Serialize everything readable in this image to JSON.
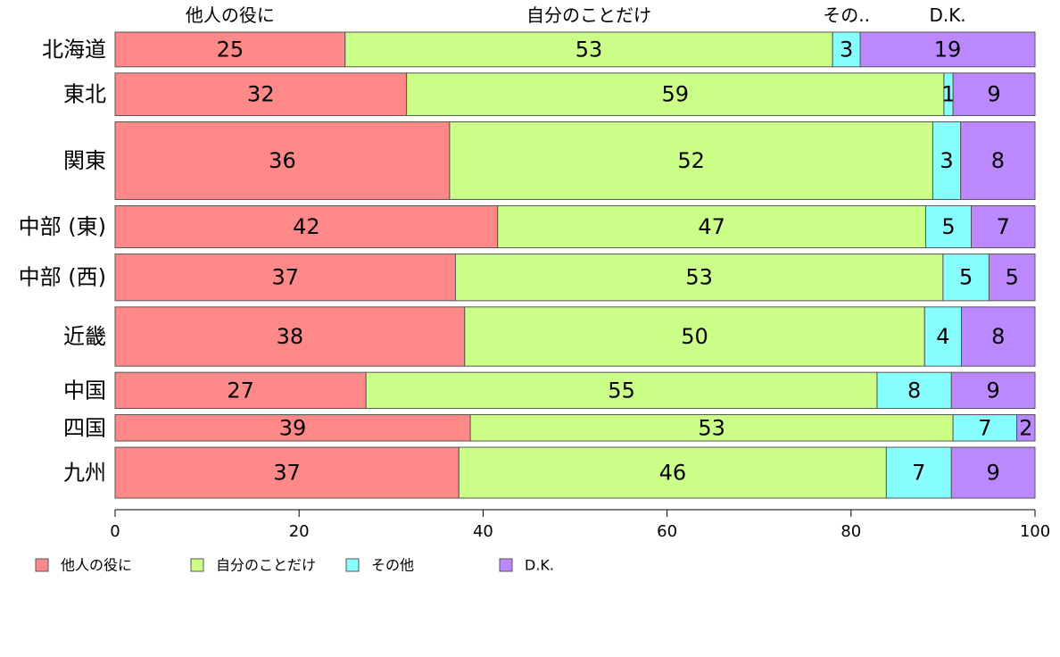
{
  "chart_data": {
    "type": "bar",
    "orientation": "horizontal",
    "stacked": true,
    "categories": [
      "北海道",
      "東北",
      "関東",
      "中部 (東)",
      "中部 (西)",
      "近畿",
      "中国",
      "四国",
      "九州"
    ],
    "series": [
      {
        "name": "他人の役に",
        "color": "#FF8888",
        "values": [
          25,
          32,
          36,
          42,
          37,
          38,
          27,
          39,
          37
        ]
      },
      {
        "name": "自分のことだけ",
        "color": "#CCFF88",
        "values": [
          53,
          59,
          52,
          47,
          53,
          50,
          55,
          53,
          46
        ]
      },
      {
        "name": "その他",
        "color": "#88FFFF",
        "values": [
          3,
          1,
          3,
          5,
          5,
          4,
          8,
          7,
          7
        ]
      },
      {
        "name": "D.K.",
        "color": "#BB88FF",
        "values": [
          19,
          9,
          8,
          7,
          5,
          8,
          9,
          2,
          9
        ]
      }
    ],
    "top_labels": [
      "他人の役に",
      "自分のことだけ",
      "その..",
      "D.K."
    ],
    "xlim": [
      0,
      100
    ],
    "xticks": [
      "0",
      "20",
      "40",
      "60",
      "80",
      "100"
    ],
    "legend_position": "bottom",
    "grid": false
  }
}
